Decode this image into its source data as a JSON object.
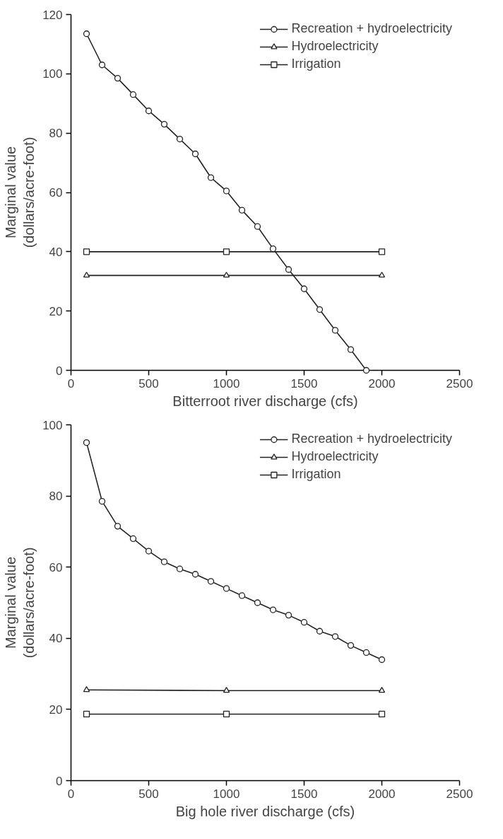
{
  "chart_data": [
    {
      "type": "line",
      "xlabel": "Bitterroot river discharge (cfs)",
      "ylabel": "Marginal value\n(dollars/acre-foot)",
      "xlim": [
        0,
        2500
      ],
      "ylim": [
        0,
        120
      ],
      "xticks": [
        0,
        500,
        1000,
        1500,
        2000,
        2500
      ],
      "yticks": [
        0,
        20,
        40,
        60,
        80,
        100,
        120
      ],
      "grid": false,
      "legend": "top right",
      "line_style": "solid",
      "series": [
        {
          "name": "Recreation + hydroelectricity",
          "color": "#222222",
          "marker": "circle",
          "x": [
            100,
            200,
            300,
            400,
            500,
            600,
            700,
            800,
            900,
            1000,
            1100,
            1200,
            1300,
            1400,
            1500,
            1600,
            1700,
            1800,
            1900
          ],
          "values": [
            113.5,
            103,
            98.5,
            93,
            87.5,
            83,
            78,
            73,
            65,
            60.5,
            54,
            48.5,
            41,
            34,
            27.5,
            20.5,
            13.5,
            7,
            0
          ]
        },
        {
          "name": "Hydroelectricity",
          "color": "#222222",
          "marker": "triangle",
          "x": [
            100,
            1000,
            2000
          ],
          "values": [
            32,
            32,
            32
          ]
        },
        {
          "name": "Irrigation",
          "color": "#222222",
          "marker": "square",
          "x": [
            100,
            1000,
            2000
          ],
          "values": [
            40,
            40,
            40
          ]
        }
      ]
    },
    {
      "type": "line",
      "xlabel": "Big hole river discharge (cfs)",
      "ylabel": "Marginal value\n(dollars/acre-foot)",
      "xlim": [
        0,
        2500
      ],
      "ylim": [
        0,
        100
      ],
      "xticks": [
        0,
        500,
        1000,
        1500,
        2000,
        2500
      ],
      "yticks": [
        0,
        20,
        40,
        60,
        80,
        100
      ],
      "grid": false,
      "legend": "top right",
      "line_style": "solid",
      "series": [
        {
          "name": "Recreation + hydroelectricity",
          "color": "#222222",
          "marker": "circle",
          "x": [
            100,
            200,
            300,
            400,
            500,
            600,
            700,
            800,
            900,
            1000,
            1100,
            1200,
            1300,
            1400,
            1500,
            1600,
            1700,
            1800,
            1900,
            2000
          ],
          "values": [
            95,
            78.5,
            71.5,
            68,
            64.5,
            61.5,
            59.5,
            58,
            56,
            54,
            52,
            50,
            48,
            46.5,
            44.5,
            42,
            40.5,
            38,
            36,
            34
          ]
        },
        {
          "name": "Hydroelectricity",
          "color": "#222222",
          "marker": "triangle",
          "x": [
            100,
            1000,
            2000
          ],
          "values": [
            25.5,
            25.3,
            25.3
          ]
        },
        {
          "name": "Irrigation",
          "color": "#222222",
          "marker": "square",
          "x": [
            100,
            1000,
            2000
          ],
          "values": [
            18.7,
            18.7,
            18.7
          ]
        }
      ]
    }
  ]
}
